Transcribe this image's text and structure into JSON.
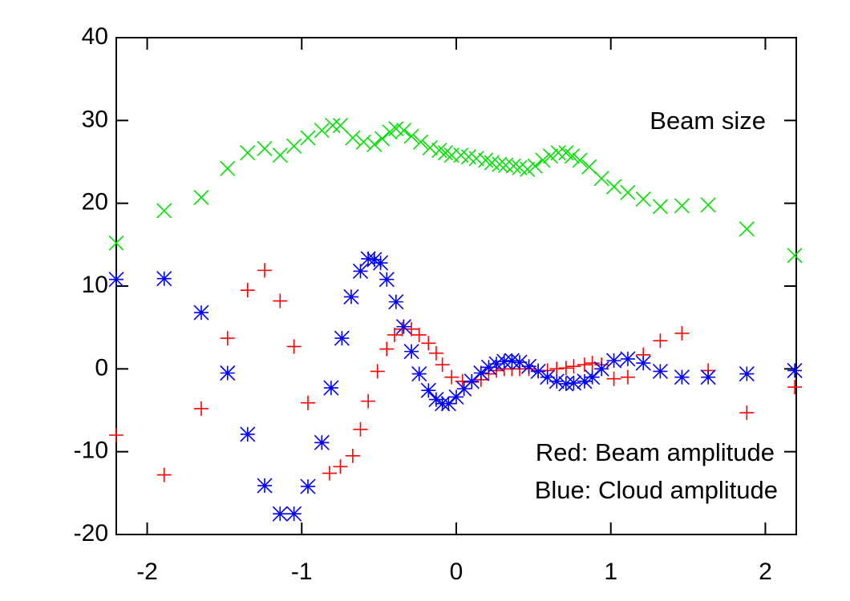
{
  "chart_data": {
    "type": "scatter",
    "annotations": [
      "Beam size",
      "Red: Beam amplitude",
      "Blue: Cloud amplitude"
    ],
    "xlim": [
      -2.2,
      2.2
    ],
    "xticks": [
      -2,
      -1,
      0,
      1,
      2
    ],
    "ylim": [
      -20,
      40
    ],
    "yticks": [
      -20,
      -10,
      0,
      10,
      20,
      30,
      40
    ],
    "series": [
      {
        "color": "#00e000",
        "marker": "x",
        "x": [
          -2.2,
          -1.89,
          -1.65,
          -1.48,
          -1.35,
          -1.24,
          -1.14,
          -1.05,
          -0.96,
          -0.87,
          -0.8,
          -0.75,
          -0.67,
          -0.6,
          -0.53,
          -0.48,
          -0.43,
          -0.39,
          -0.34,
          -0.29,
          -0.23,
          -0.17,
          -0.11,
          -0.07,
          -0.03,
          0.03,
          0.08,
          0.13,
          0.19,
          0.23,
          0.28,
          0.32,
          0.37,
          0.41,
          0.46,
          0.51,
          0.56,
          0.61,
          0.66,
          0.71,
          0.75,
          0.8,
          0.86,
          0.94,
          1.02,
          1.11,
          1.21,
          1.32,
          1.46,
          1.63,
          1.88,
          2.19
        ],
        "values": [
          15.2,
          19.1,
          20.7,
          24.2,
          26.1,
          26.6,
          25.8,
          26.9,
          27.9,
          28.8,
          29.4,
          29.4,
          27.9,
          27.4,
          27.1,
          27.8,
          28.6,
          29.0,
          28.8,
          28.1,
          27.4,
          26.7,
          26.4,
          26.1,
          25.8,
          25.8,
          25.6,
          25.4,
          25.2,
          24.9,
          24.7,
          24.6,
          24.5,
          24.3,
          24.1,
          24.5,
          25.2,
          25.7,
          26.1,
          26.1,
          25.7,
          25.2,
          24.4,
          23.0,
          22.0,
          21.3,
          20.5,
          19.6,
          19.7,
          19.8,
          16.9,
          13.7
        ]
      },
      {
        "color": "#ff0000",
        "marker": "+",
        "x": [
          -2.2,
          -1.89,
          -1.65,
          -1.48,
          -1.35,
          -1.24,
          -1.14,
          -1.05,
          -0.96,
          -0.87,
          -0.82,
          -0.75,
          -0.67,
          -0.62,
          -0.57,
          -0.51,
          -0.45,
          -0.4,
          -0.35,
          -0.29,
          -0.24,
          -0.18,
          -0.13,
          -0.09,
          -0.03,
          0.04,
          0.1,
          0.16,
          0.21,
          0.26,
          0.31,
          0.36,
          0.41,
          0.47,
          0.53,
          0.59,
          0.65,
          0.71,
          0.76,
          0.83,
          0.88,
          0.94,
          1.02,
          1.11,
          1.21,
          1.32,
          1.46,
          1.63,
          1.88,
          2.19
        ],
        "values": [
          -8.0,
          -12.8,
          -4.8,
          3.7,
          9.5,
          11.9,
          8.2,
          2.7,
          -4.1,
          -8.9,
          -12.6,
          -11.8,
          -10.5,
          -7.3,
          -3.9,
          -0.3,
          2.4,
          4.1,
          4.8,
          4.8,
          4.1,
          3.1,
          1.9,
          0.5,
          -1.0,
          -1.5,
          -1.6,
          -1.3,
          -0.6,
          -0.2,
          0,
          0,
          0,
          0,
          -0.2,
          -0.2,
          0,
          0.1,
          0.3,
          0.5,
          0.7,
          0.5,
          -1.2,
          -1.0,
          1.7,
          3.4,
          4.3,
          -0.2,
          -5.3,
          -2.2
        ]
      },
      {
        "color": "#0000ff",
        "marker": "*",
        "x": [
          -2.2,
          -1.89,
          -1.65,
          -1.48,
          -1.35,
          -1.24,
          -1.14,
          -1.05,
          -0.96,
          -0.87,
          -0.81,
          -0.74,
          -0.68,
          -0.62,
          -0.57,
          -0.53,
          -0.49,
          -0.45,
          -0.39,
          -0.34,
          -0.29,
          -0.24,
          -0.18,
          -0.13,
          -0.09,
          -0.05,
          0,
          0.05,
          0.1,
          0.16,
          0.21,
          0.26,
          0.31,
          0.36,
          0.41,
          0.47,
          0.53,
          0.59,
          0.65,
          0.71,
          0.76,
          0.83,
          0.88,
          0.94,
          1.02,
          1.11,
          1.21,
          1.32,
          1.46,
          1.63,
          1.88,
          2.19
        ],
        "values": [
          10.8,
          10.9,
          6.8,
          -0.5,
          -7.9,
          -14.1,
          -17.5,
          -17.5,
          -14.2,
          -8.9,
          -2.3,
          3.7,
          8.7,
          11.8,
          13.3,
          13.2,
          12.8,
          10.8,
          8.1,
          5.1,
          2.1,
          -0.6,
          -2.6,
          -3.7,
          -4.2,
          -4.2,
          -3.4,
          -2.4,
          -1.5,
          -0.5,
          0.2,
          0.6,
          0.9,
          1.0,
          0.8,
          0.3,
          -0.3,
          -1.0,
          -1.5,
          -1.8,
          -1.7,
          -1.5,
          -1.0,
          0,
          1.0,
          1.2,
          0.7,
          -0.3,
          -1.0,
          -1.0,
          -0.6,
          -0.2
        ]
      }
    ]
  }
}
